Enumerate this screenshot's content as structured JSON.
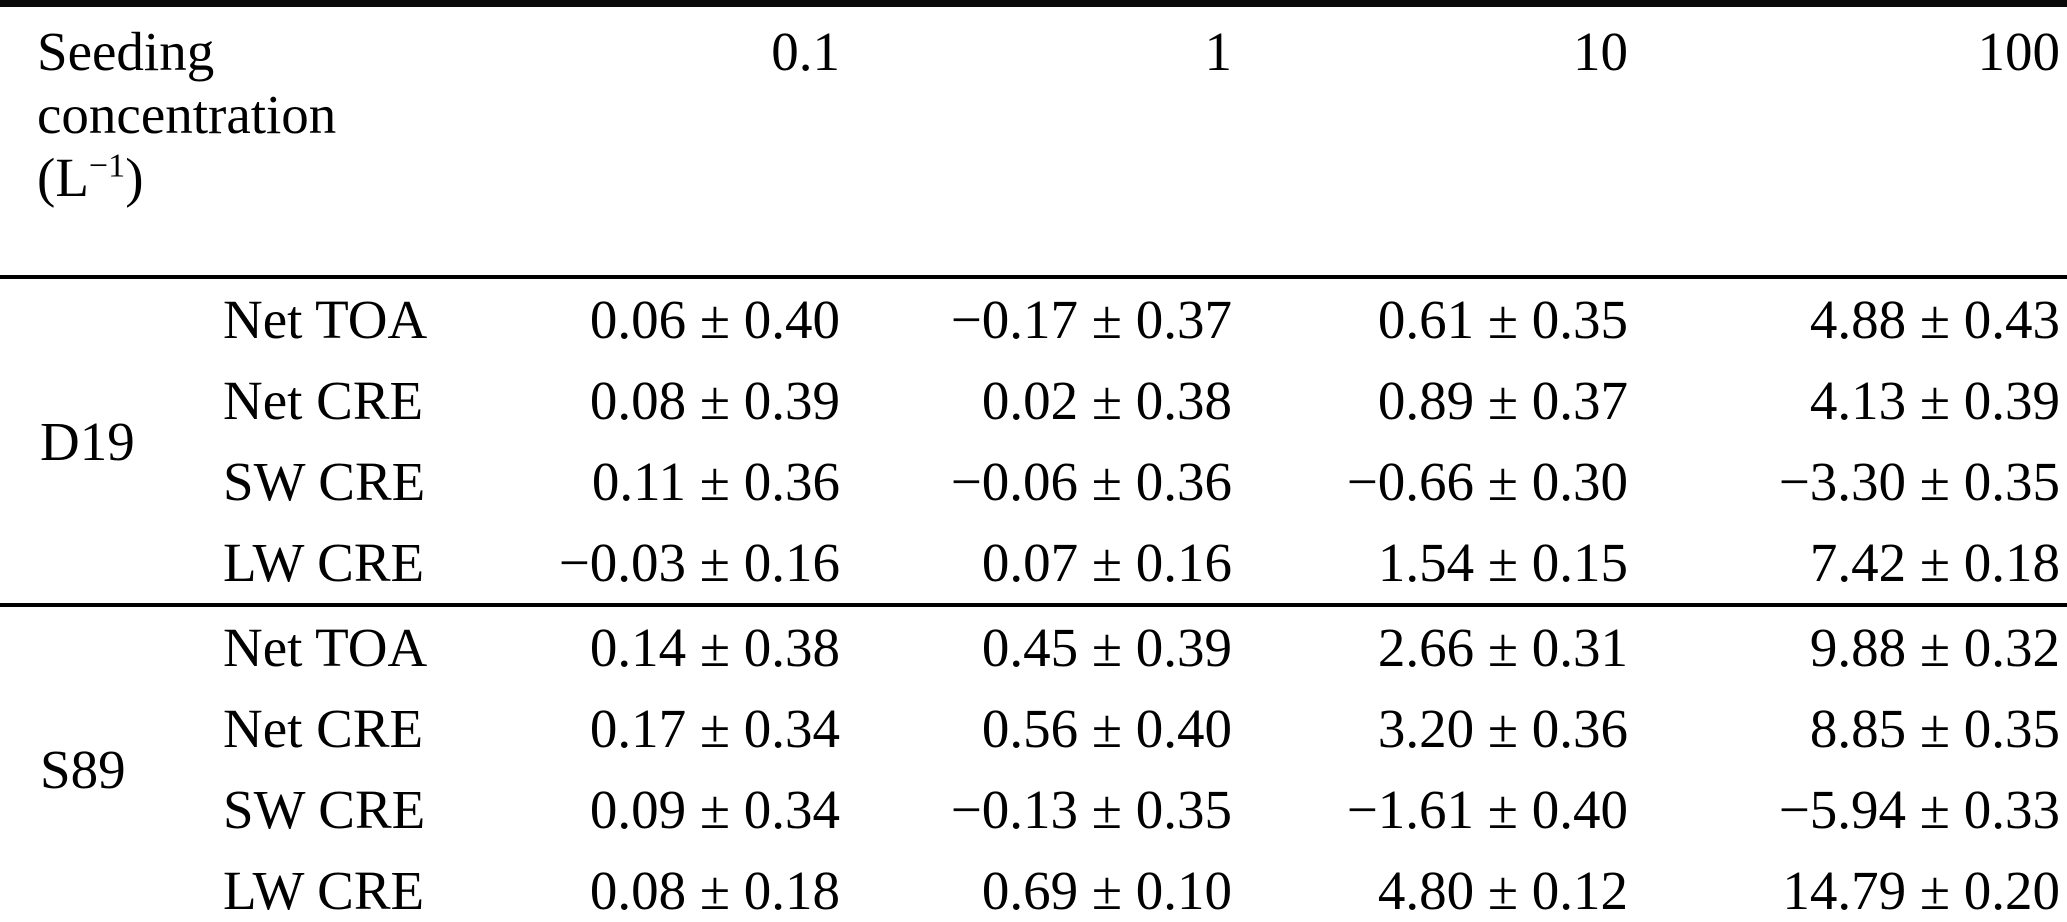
{
  "table": {
    "header": {
      "label_line1": "Seeding",
      "label_line2": "concentration",
      "unit_pre": "(L",
      "unit_sup": "−1",
      "unit_post": ")",
      "columns": [
        "0.1",
        "1",
        "10",
        "100"
      ]
    },
    "groups": [
      {
        "label": "D19",
        "rows": [
          {
            "label": "Net TOA",
            "values": [
              "0.06 ± 0.40",
              "−0.17 ± 0.37",
              "0.61 ± 0.35",
              "4.88 ± 0.43"
            ]
          },
          {
            "label": "Net CRE",
            "values": [
              "0.08 ± 0.39",
              "0.02 ± 0.38",
              "0.89 ± 0.37",
              "4.13 ± 0.39"
            ]
          },
          {
            "label": "SW CRE",
            "values": [
              "0.11 ± 0.36",
              "−0.06 ± 0.36",
              "−0.66 ± 0.30",
              "−3.30 ± 0.35"
            ]
          },
          {
            "label": "LW CRE",
            "values": [
              "−0.03 ± 0.16",
              "0.07 ± 0.16",
              "1.54 ± 0.15",
              "7.42 ± 0.18"
            ]
          }
        ]
      },
      {
        "label": "S89",
        "rows": [
          {
            "label": "Net TOA",
            "values": [
              "0.14 ± 0.38",
              "0.45 ± 0.39",
              "2.66 ± 0.31",
              "9.88 ± 0.32"
            ]
          },
          {
            "label": "Net CRE",
            "values": [
              "0.17 ± 0.34",
              "0.56 ± 0.40",
              "3.20 ± 0.36",
              "8.85 ± 0.35"
            ]
          },
          {
            "label": "SW CRE",
            "values": [
              "0.09 ± 0.34",
              "−0.13 ± 0.35",
              "−1.61 ± 0.40",
              "−5.94 ± 0.33"
            ]
          },
          {
            "label": "LW CRE",
            "values": [
              "0.08 ± 0.18",
              "0.69 ± 0.10",
              "4.80 ± 0.12",
              "14.79 ± 0.20"
            ]
          }
        ]
      }
    ]
  }
}
